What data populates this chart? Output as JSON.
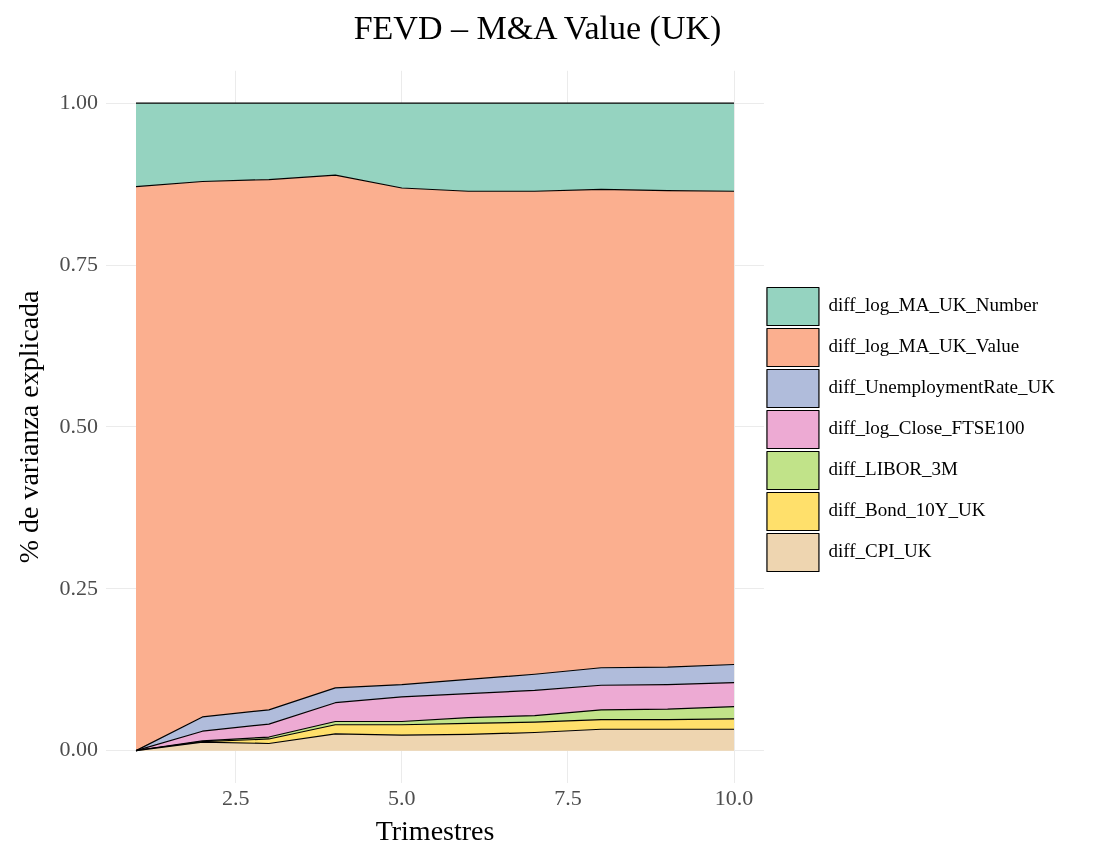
{
  "chart_data": {
    "type": "area",
    "title": "FEVD – M&A Value (UK)",
    "xlabel": "Trimestres",
    "ylabel": "% de varianza explicada",
    "stacked": true,
    "legend": "right",
    "grid": true,
    "x": [
      1,
      2,
      3,
      4,
      5,
      6,
      7,
      8,
      9,
      10
    ],
    "xlim": [
      0.55,
      10.45
    ],
    "xticks": [
      {
        "value": 2.5,
        "label": "2.5"
      },
      {
        "value": 5,
        "label": "5.0"
      },
      {
        "value": 7.5,
        "label": "7.5"
      },
      {
        "value": 10,
        "label": "10.0"
      }
    ],
    "ylim": [
      -0.05,
      1.05
    ],
    "yticks": [
      {
        "value": 0,
        "label": "0.00"
      },
      {
        "value": 0.25,
        "label": "0.25"
      },
      {
        "value": 0.5,
        "label": "0.50"
      },
      {
        "value": 0.75,
        "label": "0.75"
      },
      {
        "value": 1,
        "label": "1.00"
      }
    ],
    "series": [
      {
        "name": "diff_CPI_UK",
        "color": "#eed5b0",
        "values": [
          0,
          0.013,
          0.011,
          0.026,
          0.024,
          0.025,
          0.028,
          0.033,
          0.033,
          0.033
        ]
      },
      {
        "name": "diff_Bond_10Y_UK",
        "color": "#ffe06b",
        "values": [
          0,
          0.001,
          0.007,
          0.014,
          0.016,
          0.017,
          0.016,
          0.015,
          0.015,
          0.016
        ]
      },
      {
        "name": "diff_LIBOR_3M",
        "color": "#c1e389",
        "values": [
          0,
          0.001,
          0.003,
          0.005,
          0.005,
          0.009,
          0.01,
          0.015,
          0.016,
          0.019
        ]
      },
      {
        "name": "diff_log_Close_FTSE100",
        "color": "#edaad3",
        "values": [
          0,
          0.015,
          0.02,
          0.029,
          0.038,
          0.037,
          0.039,
          0.038,
          0.038,
          0.037
        ]
      },
      {
        "name": "diff_UnemploymentRate_UK",
        "color": "#b0bcdb",
        "values": [
          0,
          0.022,
          0.022,
          0.023,
          0.019,
          0.022,
          0.025,
          0.027,
          0.027,
          0.028
        ]
      },
      {
        "name": "diff_log_MA_UK_Value",
        "color": "#fbaf8f",
        "values": [
          0.871,
          0.827,
          0.819,
          0.792,
          0.767,
          0.754,
          0.746,
          0.739,
          0.736,
          0.731
        ]
      },
      {
        "name": "diff_log_MA_UK_Number",
        "color": "#95d3c0",
        "values": [
          0.129,
          0.121,
          0.118,
          0.111,
          0.131,
          0.136,
          0.136,
          0.133,
          0.135,
          0.136
        ]
      }
    ]
  }
}
